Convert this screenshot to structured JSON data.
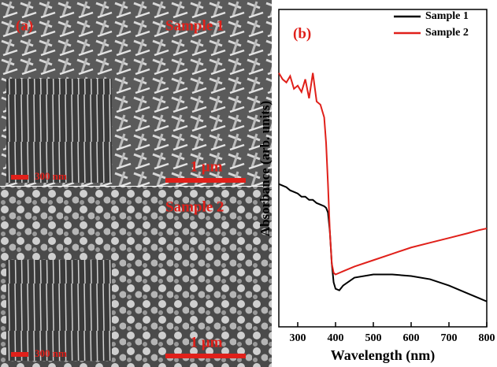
{
  "panel_a": {
    "label": "(a)",
    "sample1": "Sample 1",
    "sample2": "Sample 2",
    "scale_top": "1 μm",
    "scale_bottom": "1 μm",
    "inset_top_scale": "300 nm",
    "inset_bottom_scale": "300 nm"
  },
  "chart_data": {
    "type": "line",
    "annotation": "(b)",
    "x_label": "Wavelength (nm)",
    "y_label": "Absorbance (arb. units)",
    "x": [
      250,
      260,
      270,
      280,
      290,
      300,
      310,
      320,
      330,
      340,
      350,
      360,
      370,
      375,
      380,
      385,
      390,
      395,
      400,
      410,
      420,
      450,
      500,
      550,
      600,
      650,
      700,
      750,
      780,
      800
    ],
    "series": [
      {
        "name": "Sample 1",
        "color": "#000000",
        "values": [
          0.45,
          0.445,
          0.44,
          0.43,
          0.425,
          0.42,
          0.41,
          0.41,
          0.4,
          0.4,
          0.39,
          0.385,
          0.38,
          0.375,
          0.36,
          0.3,
          0.2,
          0.14,
          0.12,
          0.115,
          0.13,
          0.155,
          0.165,
          0.165,
          0.16,
          0.15,
          0.13,
          0.105,
          0.09,
          0.08
        ]
      },
      {
        "name": "Sample 2",
        "color": "#e0201a",
        "values": [
          0.8,
          0.78,
          0.77,
          0.79,
          0.75,
          0.76,
          0.74,
          0.78,
          0.72,
          0.8,
          0.71,
          0.7,
          0.66,
          0.58,
          0.45,
          0.3,
          0.2,
          0.17,
          0.165,
          0.17,
          0.175,
          0.19,
          0.21,
          0.23,
          0.25,
          0.265,
          0.28,
          0.295,
          0.305,
          0.31
        ]
      }
    ],
    "xlim": [
      250,
      800
    ],
    "xticks": [
      300,
      400,
      500,
      600,
      700,
      800
    ],
    "ylim": [
      0,
      1
    ],
    "legend": "top-right"
  }
}
